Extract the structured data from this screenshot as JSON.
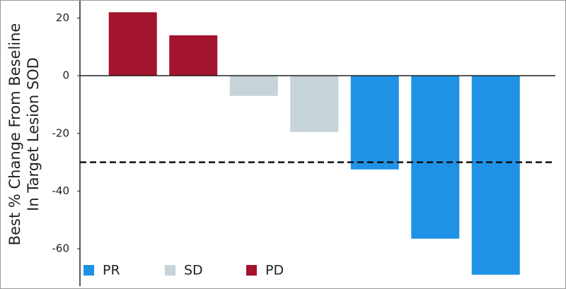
{
  "chart_data": {
    "type": "waterfall",
    "y_label": [
      "Best % Change From Beseline",
      "In Target Lesion SOD"
    ],
    "categories": [
      null,
      null,
      null,
      null,
      null,
      null,
      null
    ],
    "series": [
      {
        "name": "PR",
        "color": "#1f92e6",
        "values": [
          null,
          null,
          null,
          null,
          -32.5,
          -56.5,
          -69
        ]
      },
      {
        "name": "SD",
        "color": "#c6d3d8",
        "values": [
          null,
          null,
          -7,
          -19.5,
          null,
          null,
          null
        ]
      },
      {
        "name": "PD",
        "color": "#a3142d",
        "values": [
          22,
          14,
          null,
          null,
          null,
          null,
          null
        ]
      }
    ],
    "ylim": [
      -72,
      26
    ],
    "yticks": [
      20,
      0,
      -20,
      -40,
      -60
    ],
    "reference_line": -30,
    "grid": false,
    "legend": "bottom-left"
  }
}
